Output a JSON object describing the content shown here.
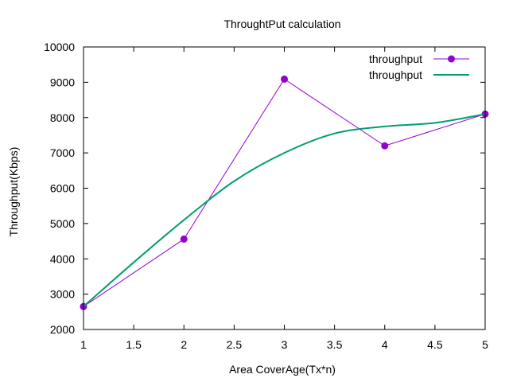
{
  "chart_data": {
    "type": "line",
    "title": "ThroughtPut calculation",
    "xlabel": "Area CoverAge(Tx*n)",
    "ylabel": "Throughput(Kbps)",
    "xlim": [
      1,
      5
    ],
    "ylim": [
      2000,
      10000
    ],
    "xticks": [
      1,
      1.5,
      2,
      2.5,
      3,
      3.5,
      4,
      4.5,
      5
    ],
    "xtick_labels": [
      "1",
      "1.5",
      "2",
      "2.5",
      "3",
      "3.5",
      "4",
      "4.5",
      "5"
    ],
    "yticks": [
      2000,
      3000,
      4000,
      5000,
      6000,
      7000,
      8000,
      9000,
      10000
    ],
    "ytick_labels": [
      "2000",
      "3000",
      "4000",
      "5000",
      "6000",
      "7000",
      "8000",
      "9000",
      "10000"
    ],
    "grid": false,
    "legend_position": "top-right",
    "series": [
      {
        "name": "throughput",
        "style": "linespoints",
        "color": "#9400d3",
        "x": [
          1,
          2,
          3,
          4,
          5
        ],
        "y": [
          2650,
          4560,
          9090,
          7200,
          8100
        ]
      },
      {
        "name": "throughput",
        "style": "smooth",
        "color": "#009e73",
        "x": [
          1,
          1.5,
          2,
          2.5,
          3,
          3.5,
          4,
          4.5,
          5
        ],
        "y": [
          2650,
          3900,
          5100,
          6200,
          7000,
          7550,
          7750,
          7850,
          8100
        ]
      }
    ]
  }
}
